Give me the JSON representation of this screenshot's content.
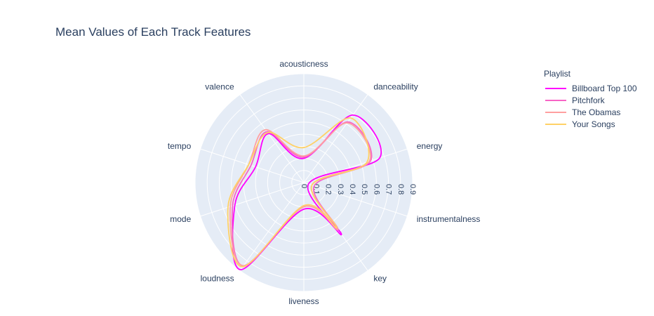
{
  "chart_data": {
    "type": "radar",
    "title": "Mean Values of Each Track Features",
    "axes": [
      "acousticness",
      "danceability",
      "energy",
      "instrumentalness",
      "key",
      "liveness",
      "loudness",
      "mode",
      "tempo",
      "valence"
    ],
    "radial_ticks": [
      "0",
      "0.1",
      "0.2",
      "0.3",
      "0.4",
      "0.5",
      "0.6",
      "0.7",
      "0.8",
      "0.9"
    ],
    "radial_range": [
      0,
      0.9
    ],
    "line_shape": "spline",
    "legend": {
      "title": "Playlist",
      "placement": "top-right"
    },
    "series": [
      {
        "name": "Billboard Top 100",
        "color": "#ff00ff",
        "values": [
          0.2,
          0.69,
          0.66,
          0.04,
          0.53,
          0.22,
          0.89,
          0.6,
          0.42,
          0.5
        ]
      },
      {
        "name": "Pitchfork",
        "color": "#f765c5",
        "values": [
          0.21,
          0.62,
          0.58,
          0.09,
          0.48,
          0.2,
          0.85,
          0.62,
          0.46,
          0.52
        ]
      },
      {
        "name": "The Obamas",
        "color": "#ffa0a0",
        "values": [
          0.22,
          0.61,
          0.57,
          0.07,
          0.48,
          0.2,
          0.85,
          0.64,
          0.48,
          0.54
        ]
      },
      {
        "name": "Your Songs",
        "color": "#ffd166",
        "values": [
          0.29,
          0.66,
          0.55,
          0.07,
          0.46,
          0.19,
          0.86,
          0.66,
          0.48,
          0.51
        ]
      }
    ]
  }
}
